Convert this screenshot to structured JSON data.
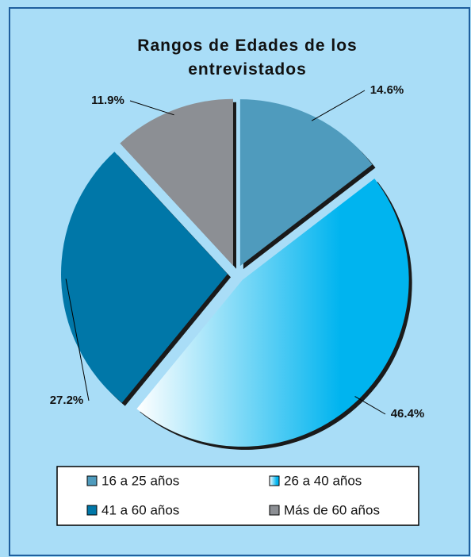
{
  "chart_data": {
    "type": "pie",
    "title": "Rangos de Edades de los entrevistados",
    "categories": [
      "16 a 25 años",
      "26 a 40 años",
      "41 a 60 años",
      "Más de 60 años"
    ],
    "values": [
      14.6,
      46.4,
      27.2,
      11.9
    ],
    "value_labels": [
      "14.6%",
      "46.4%",
      "27.2%",
      "11.9%"
    ],
    "colors": [
      "#4f9bbd",
      "#00b4ef",
      "#0077a8",
      "#8c8f94"
    ],
    "legend": "bottom"
  }
}
